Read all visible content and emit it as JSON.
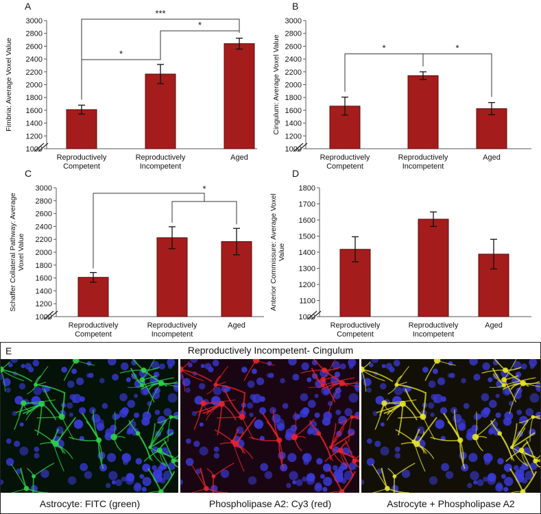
{
  "chart_data": [
    {
      "panel": "A",
      "type": "bar",
      "categories": [
        "Reproductively\nCompetent",
        "Reproductively\nIncompetent",
        "Aged"
      ],
      "values": [
        1610,
        2165,
        2640
      ],
      "errors": [
        70,
        150,
        85
      ],
      "ylabel": "Fimbria: Average Voxel Value",
      "ylim": [
        1000,
        3000
      ],
      "yticks": [
        1000,
        1200,
        1400,
        1600,
        1800,
        2000,
        2200,
        2400,
        2600,
        2800,
        3000
      ],
      "significance": [
        {
          "from": 0,
          "to": 1,
          "label": "*"
        },
        {
          "from": 1,
          "to": 2,
          "label": "*"
        },
        {
          "from": 0,
          "to": 2,
          "label": "***"
        }
      ]
    },
    {
      "panel": "B",
      "type": "bar",
      "categories": [
        "Reproductively\nCompetent",
        "Reproductively\nIncompetent",
        "Aged"
      ],
      "values": [
        1665,
        2140,
        1625
      ],
      "errors": [
        140,
        60,
        95
      ],
      "ylabel": "Cingulum: Average Voxel Value",
      "ylim": [
        1000,
        3000
      ],
      "yticks": [
        1000,
        1200,
        1400,
        1600,
        1800,
        2000,
        2200,
        2400,
        2600,
        2800,
        3000
      ],
      "significance": [
        {
          "from": 0,
          "to": 1,
          "label": "*"
        },
        {
          "from": 1,
          "to": 2,
          "label": "*"
        }
      ]
    },
    {
      "panel": "C",
      "type": "bar",
      "categories": [
        "Reproductively\nCompetent",
        "Reproductively\nIncompetent",
        "Aged"
      ],
      "values": [
        1610,
        2225,
        2165
      ],
      "errors": [
        75,
        170,
        205
      ],
      "ylabel": "Schaffer Collateral Pathway: Average\nVoxel Value",
      "ylim": [
        1000,
        3000
      ],
      "yticks": [
        1000,
        1200,
        1400,
        1600,
        1800,
        2000,
        2200,
        2400,
        2600,
        2800,
        3000
      ],
      "significance": [
        {
          "from": 0,
          "to": [
            1,
            2
          ],
          "label": "*"
        }
      ]
    },
    {
      "panel": "D",
      "type": "bar",
      "categories": [
        "Reproductively\nCompetent",
        "Reproductively\nIncompetent",
        "Aged"
      ],
      "values": [
        1418,
        1605,
        1388
      ],
      "errors": [
        78,
        45,
        92
      ],
      "ylabel": "Anterior Commissure: Average Voxel\nValue",
      "ylim": [
        1000,
        1800
      ],
      "yticks": [
        1000,
        1100,
        1200,
        1300,
        1400,
        1500,
        1600,
        1700,
        1800
      ],
      "significance": []
    }
  ],
  "colors": {
    "bar": "#a51c1c",
    "bar_edge": "#5a0c0c"
  },
  "panel_e": {
    "letter": "E",
    "title": "Reproductively Incompetent- Cingulum",
    "captions": [
      "Astrocyte: FITC (green)",
      "Phospholipase A2: Cy3 (red)",
      "Astrocyte + Phospholipase A2"
    ],
    "channel_colors": [
      "#2fd14a",
      "#e8232f",
      "#e8e52a"
    ],
    "nuclei_color": "#3a3ad6"
  }
}
